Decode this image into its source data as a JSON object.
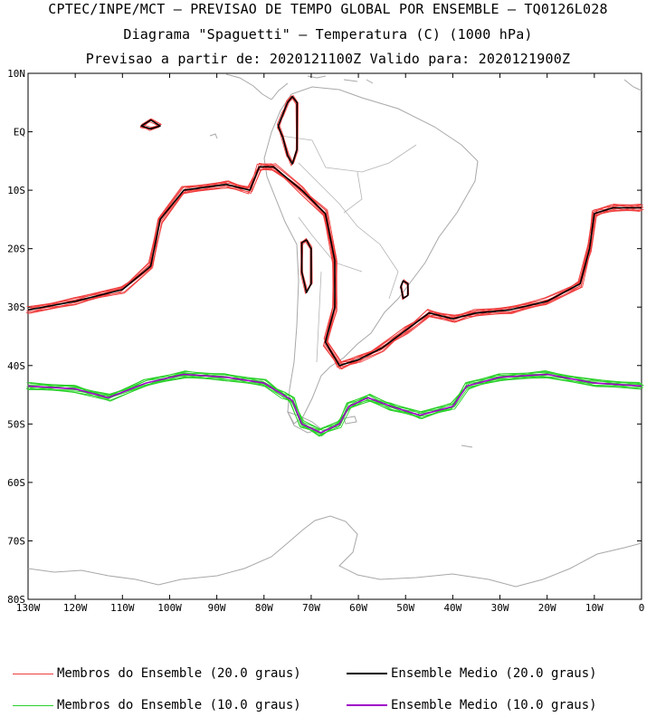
{
  "title": {
    "line1": "CPTEC/INPE/MCT — PREVISAO DE TEMPO GLOBAL POR ENSEMBLE — TQ0126L028",
    "line2": "Diagrama \"Spaguetti\" — Temperatura (C) (1000 hPa)",
    "line3": "Previsao a partir de: 2020121100Z  Valido para: 2020121900Z"
  },
  "axes": {
    "lat_labels": [
      "10N",
      "EQ",
      "10S",
      "20S",
      "30S",
      "40S",
      "50S",
      "60S",
      "70S",
      "80S"
    ],
    "lon_labels": [
      "130W",
      "120W",
      "110W",
      "100W",
      "90W",
      "80W",
      "70W",
      "60W",
      "50W",
      "40W",
      "30W",
      "20W",
      "10W",
      "0"
    ],
    "lat_range": [
      -80,
      10
    ],
    "lon_range": [
      -130,
      0
    ]
  },
  "legend": [
    {
      "label": "Membros do Ensemble (20.0 graus)",
      "color": "#f03c3c"
    },
    {
      "label": "Ensemble Medio (20.0 graus)",
      "color": "#000000"
    },
    {
      "label": "Membros do Ensemble (10.0 graus)",
      "color": "#2ad12a"
    },
    {
      "label": "Ensemble Medio (10.0 graus)",
      "color": "#a000c8"
    }
  ],
  "colors": {
    "member20": "#f03c3c",
    "mean20": "#000000",
    "member10": "#2ad12a",
    "mean10": "#a000c8",
    "coast": "#a8a8a8"
  },
  "contours": {
    "mean20_main": [
      [
        -130,
        -30.5
      ],
      [
        -120,
        -29
      ],
      [
        -110,
        -27
      ],
      [
        -104,
        -23
      ],
      [
        -102,
        -15
      ],
      [
        -97,
        -10
      ],
      [
        -88,
        -9
      ],
      [
        -83,
        -10
      ],
      [
        -81,
        -6
      ],
      [
        -78,
        -6
      ],
      [
        -72,
        -10
      ],
      [
        -67,
        -14
      ],
      [
        -65,
        -22
      ],
      [
        -65,
        -30
      ],
      [
        -67,
        -36
      ],
      [
        -64,
        -40
      ],
      [
        -60,
        -39
      ],
      [
        -55,
        -37
      ],
      [
        -50,
        -34
      ],
      [
        -45,
        -31
      ],
      [
        -40,
        -32
      ],
      [
        -35,
        -31
      ],
      [
        -28,
        -30.5
      ],
      [
        -20,
        -29
      ],
      [
        -13,
        -26
      ],
      [
        -11,
        -20
      ],
      [
        -10,
        -14
      ],
      [
        -6,
        -13
      ],
      [
        0,
        -13
      ]
    ],
    "mean20_andes": [
      [
        -77,
        1
      ],
      [
        -76,
        -1
      ],
      [
        -75,
        -4
      ],
      [
        -74,
        -5.5
      ],
      [
        -73,
        -3
      ],
      [
        -73,
        5
      ],
      [
        -74,
        6
      ],
      [
        -75,
        5
      ],
      [
        -76,
        3
      ],
      [
        -77,
        1
      ]
    ],
    "mean20_cuyo": [
      [
        -72,
        -19
      ],
      [
        -72,
        -24
      ],
      [
        -71,
        -27.5
      ],
      [
        -70,
        -26
      ],
      [
        -70,
        -20
      ],
      [
        -71,
        -18.5
      ],
      [
        -72,
        -19
      ]
    ],
    "mean20_brazil": [
      [
        -51,
        -26.5
      ],
      [
        -50.5,
        -28.5
      ],
      [
        -49.5,
        -28
      ],
      [
        -49.5,
        -26
      ],
      [
        -50.5,
        -25.5
      ],
      [
        -51,
        -26.5
      ]
    ],
    "mean20_pacific": [
      [
        -106,
        1
      ],
      [
        -104,
        0.5
      ],
      [
        -102,
        1
      ],
      [
        -104,
        2
      ],
      [
        -106,
        1
      ]
    ],
    "mean10": [
      [
        -130,
        -43.5
      ],
      [
        -120,
        -44
      ],
      [
        -113,
        -45.5
      ],
      [
        -105,
        -43
      ],
      [
        -97,
        -41.5
      ],
      [
        -88,
        -42
      ],
      [
        -80,
        -43
      ],
      [
        -76,
        -45
      ],
      [
        -74,
        -46
      ],
      [
        -72,
        -50
      ],
      [
        -68,
        -51.5
      ],
      [
        -64,
        -50
      ],
      [
        -62,
        -47
      ],
      [
        -58,
        -45.5
      ],
      [
        -53,
        -47
      ],
      [
        -47,
        -48.5
      ],
      [
        -40,
        -47
      ],
      [
        -37,
        -43.5
      ],
      [
        -30,
        -42
      ],
      [
        -20,
        -41.5
      ],
      [
        -10,
        -43
      ],
      [
        0,
        -43.5
      ]
    ]
  }
}
